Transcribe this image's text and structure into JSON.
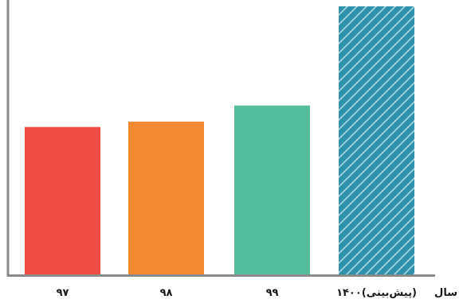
{
  "chart_data": {
    "type": "bar",
    "title": "",
    "xlabel": "سال",
    "ylabel": "",
    "categories": [
      "۹۷",
      "۹۸",
      "۹۹",
      "۱۴۰۰(پیش‌بینی)"
    ],
    "values": [
      55,
      57,
      63,
      100
    ],
    "ylim": [
      0,
      100
    ],
    "grid": false,
    "legend": "none",
    "bar_colors": [
      "#f04e45",
      "#f48a34",
      "#55bc9c",
      "#2f91ab"
    ],
    "forecast_pattern": {
      "category_index": 3,
      "stripe_color": "#a9d6e0"
    },
    "axis_color": "#8a8a8a"
  }
}
